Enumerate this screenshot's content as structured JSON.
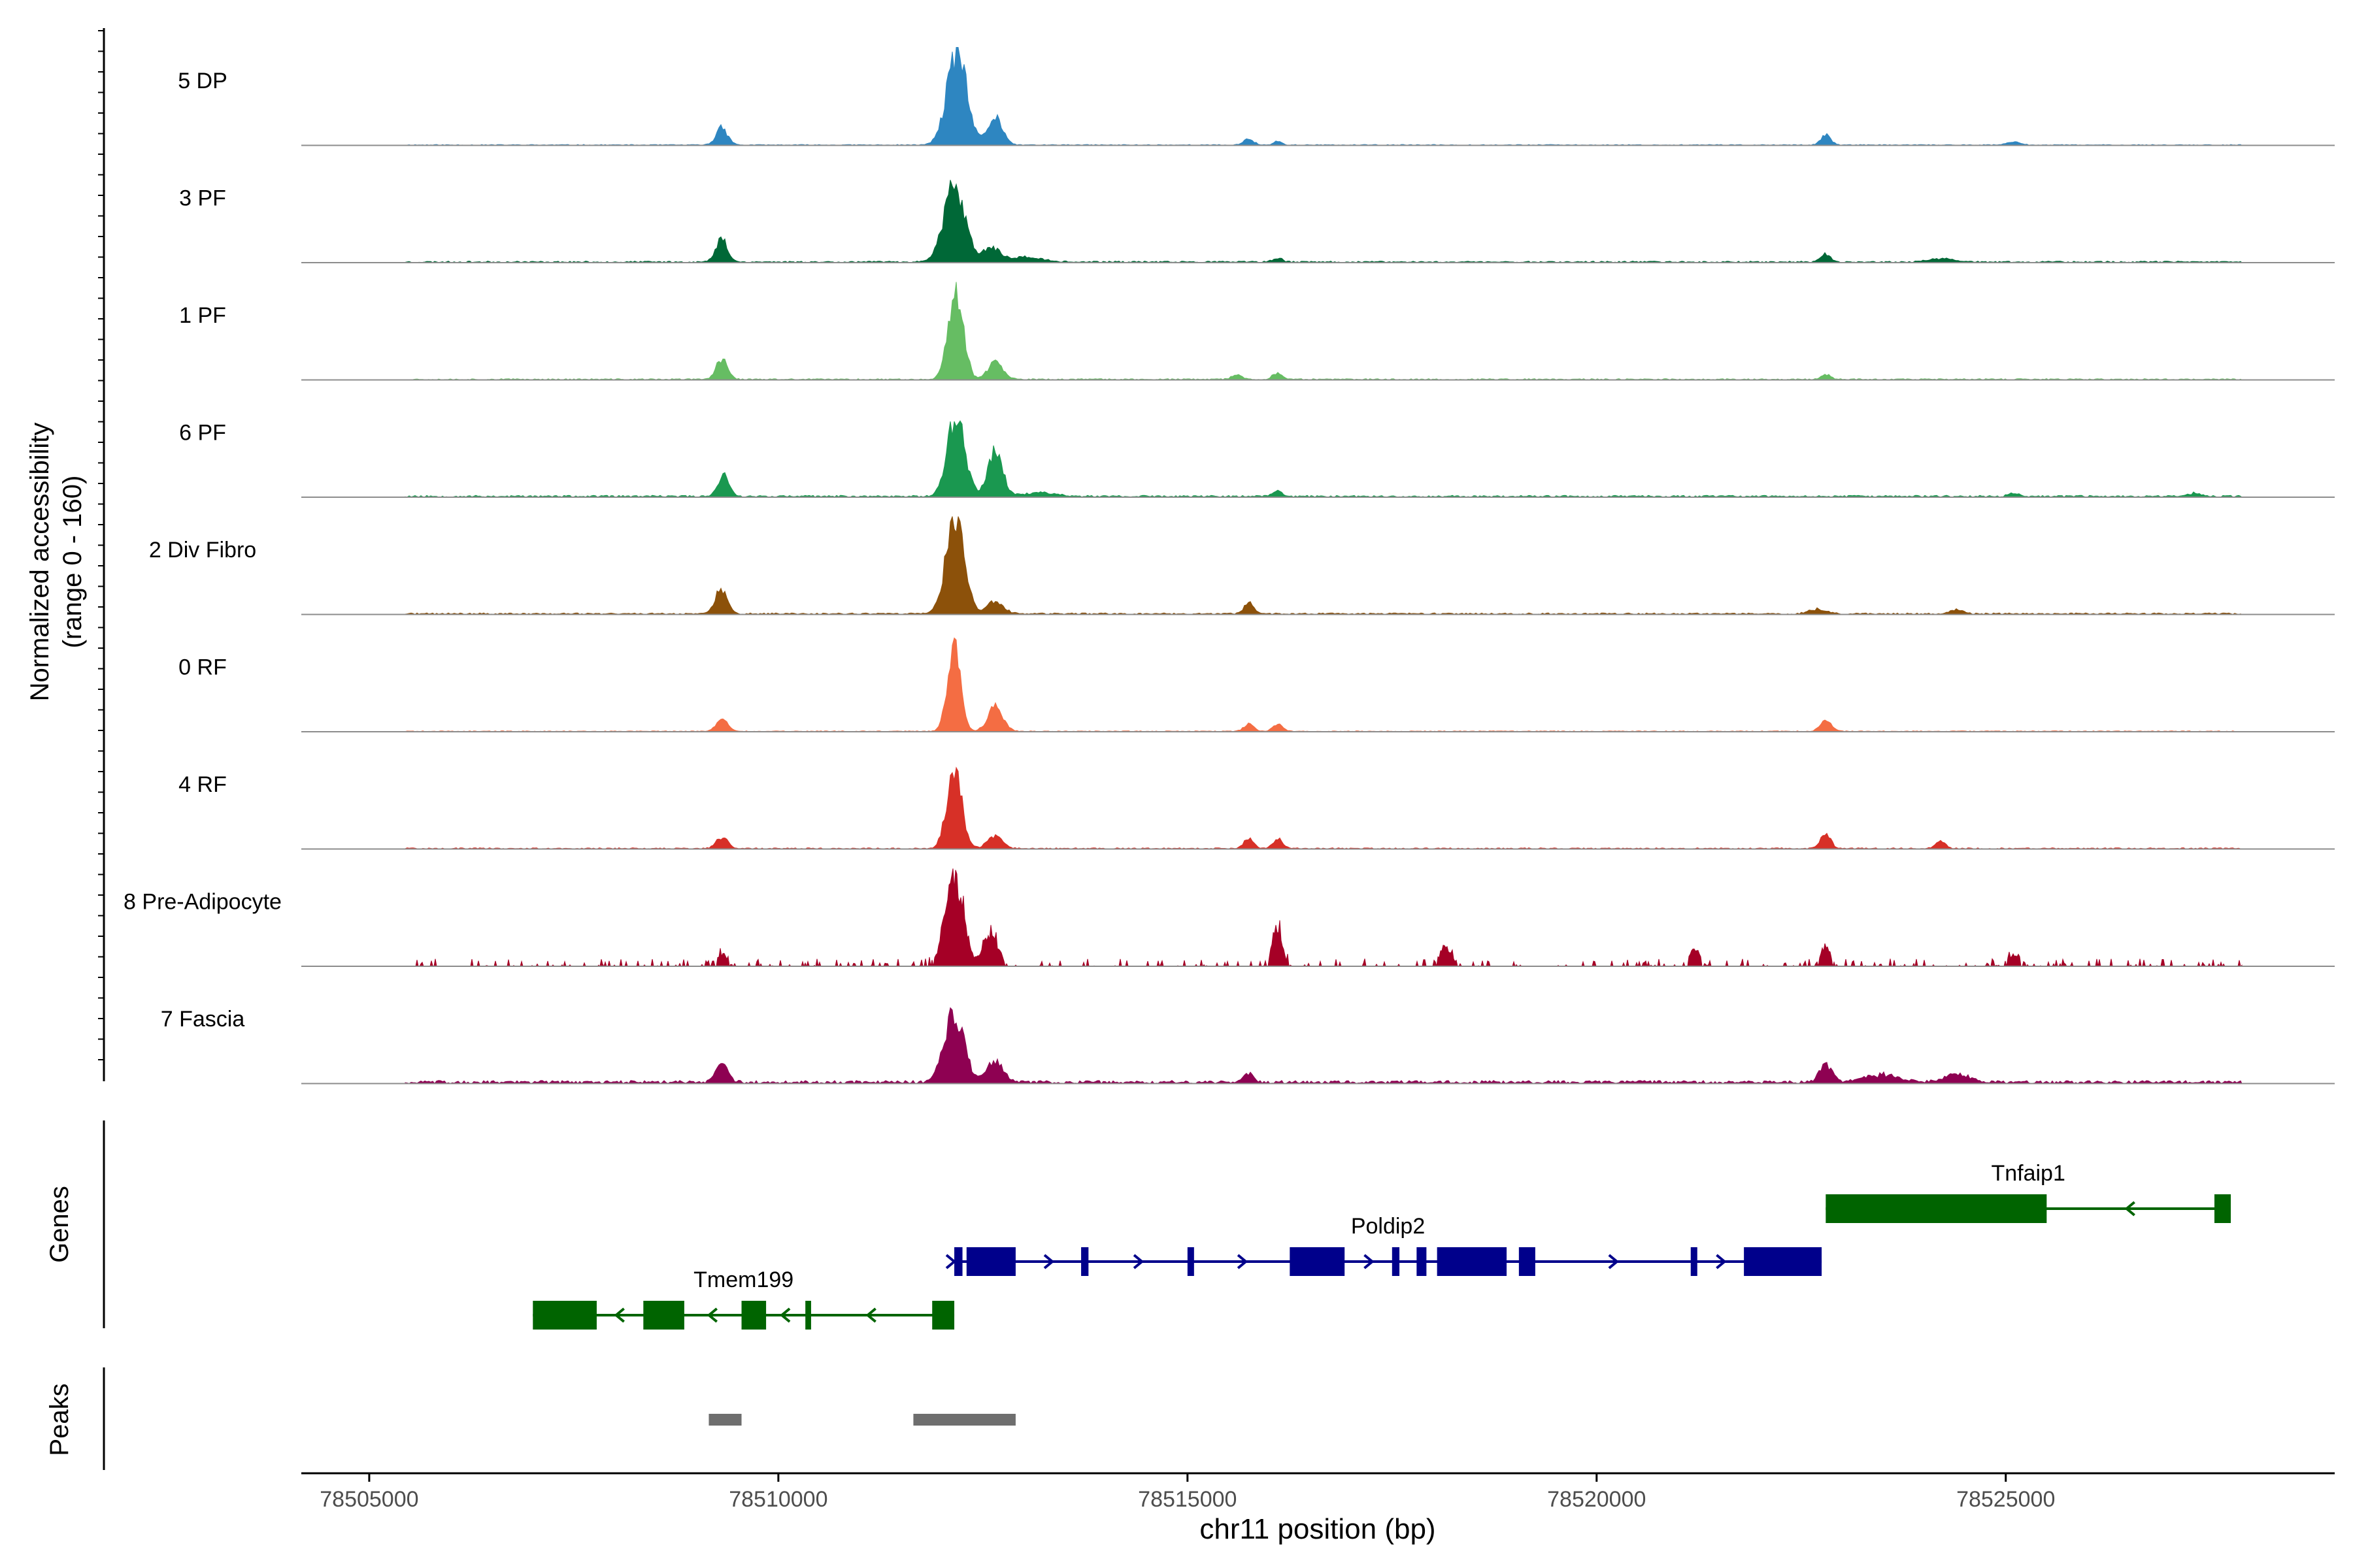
{
  "chart_data": {
    "type": "area",
    "subtype": "genome-coverage-track",
    "region": {
      "chromosome": "chr11",
      "start": 78504170,
      "end": 78529020
    },
    "coverage": {
      "ylabel_line1": "Normalized accessibility",
      "ylabel_line2": "(range 0 - 160)",
      "ylim": [
        0,
        160
      ],
      "tracks": [
        {
          "name": "5 DP",
          "color": "#2e86c1",
          "peaks": [
            [
              78509310,
              28,
              70
            ],
            [
              78512180,
              150,
              120
            ],
            [
              78512650,
              45,
              90
            ],
            [
              78515750,
              10,
              60
            ],
            [
              78516100,
              6,
              50
            ],
            [
              78522800,
              16,
              60
            ],
            [
              78525100,
              5,
              80
            ]
          ],
          "noise": 1.5,
          "seed": 11
        },
        {
          "name": "3 PF",
          "color": "#006837",
          "peaks": [
            [
              78509310,
              38,
              70
            ],
            [
              78512150,
              120,
              130
            ],
            [
              78512600,
              22,
              100
            ],
            [
              78513000,
              8,
              200
            ],
            [
              78516100,
              6,
              60
            ],
            [
              78522800,
              12,
              60
            ],
            [
              78524200,
              5,
              150
            ]
          ],
          "noise": 2.5,
          "seed": 23
        },
        {
          "name": "1 PF",
          "color": "#66bd63",
          "peaks": [
            [
              78509310,
              32,
              70
            ],
            [
              78512170,
              150,
              90
            ],
            [
              78512650,
              28,
              90
            ],
            [
              78515600,
              8,
              60
            ],
            [
              78516100,
              10,
              60
            ],
            [
              78522800,
              8,
              60
            ]
          ],
          "noise": 2,
          "seed": 37
        },
        {
          "name": "6 PF",
          "color": "#1a9850",
          "peaks": [
            [
              78509330,
              35,
              70
            ],
            [
              78512170,
              125,
              110
            ],
            [
              78512650,
              75,
              90
            ],
            [
              78513200,
              6,
              200
            ],
            [
              78516100,
              8,
              60
            ],
            [
              78525100,
              6,
              60
            ],
            [
              78527300,
              5,
              80
            ]
          ],
          "noise": 3,
          "seed": 53
        },
        {
          "name": "2 Div Fibro",
          "color": "#8c510a",
          "peaks": [
            [
              78509300,
              42,
              70
            ],
            [
              78512160,
              165,
              110
            ],
            [
              78512650,
              20,
              100
            ],
            [
              78515750,
              18,
              60
            ],
            [
              78522700,
              8,
              100
            ],
            [
              78524400,
              6,
              80
            ]
          ],
          "noise": 2.5,
          "seed": 71
        },
        {
          "name": "0 RF",
          "color": "#f46d43",
          "peaks": [
            [
              78509310,
              20,
              70
            ],
            [
              78512150,
              140,
              80
            ],
            [
              78512650,
              40,
              90
            ],
            [
              78515750,
              12,
              60
            ],
            [
              78516100,
              12,
              60
            ],
            [
              78522800,
              18,
              70
            ]
          ],
          "noise": 1.5,
          "seed": 89
        },
        {
          "name": "4 RF",
          "color": "#d73027",
          "peaks": [
            [
              78509310,
              18,
              70
            ],
            [
              78512150,
              130,
              90
            ],
            [
              78512650,
              20,
              90
            ],
            [
              78515750,
              16,
              60
            ],
            [
              78516100,
              16,
              60
            ],
            [
              78522800,
              25,
              60
            ],
            [
              78524200,
              12,
              60
            ]
          ],
          "noise": 2,
          "seed": 101
        },
        {
          "name": "8 Pre-Adipocyte",
          "color": "#a50026",
          "peaks": [
            [
              78509310,
              20,
              60
            ],
            [
              78512150,
              150,
              110
            ],
            [
              78512600,
              50,
              90
            ],
            [
              78516100,
              60,
              60
            ],
            [
              78518150,
              30,
              70
            ],
            [
              78521200,
              28,
              60
            ],
            [
              78522800,
              32,
              60
            ],
            [
              78525100,
              20,
              80
            ]
          ],
          "noise": 8,
          "seed": 131,
          "sparse": true
        },
        {
          "name": "7 Fascia",
          "color": "#8e0152",
          "peaks": [
            [
              78509310,
              30,
              70
            ],
            [
              78512150,
              110,
              120
            ],
            [
              78512650,
              35,
              100
            ],
            [
              78515750,
              15,
              60
            ],
            [
              78522800,
              28,
              80
            ],
            [
              78523500,
              12,
              200
            ],
            [
              78524400,
              14,
              150
            ]
          ],
          "noise": 5,
          "seed": 151
        }
      ]
    },
    "genes": {
      "label": "Genes",
      "items": [
        {
          "name": "Tmem199",
          "strand": "-",
          "color": "#006400",
          "start": 78507000,
          "end": 78512150,
          "exons": [
            [
              78507000,
              78507780
            ],
            [
              78508350,
              78508850
            ],
            [
              78509550,
              78509850
            ],
            [
              78510330,
              78510400
            ],
            [
              78511880,
              78512150
            ]
          ]
        },
        {
          "name": "Poldip2",
          "strand": "+",
          "color": "#00008b",
          "start": 78512150,
          "end": 78522750,
          "exons": [
            [
              78512150,
              78512250
            ],
            [
              78512300,
              78512900
            ],
            [
              78513700,
              78513790
            ],
            [
              78515000,
              78515080
            ],
            [
              78516250,
              78516920
            ],
            [
              78517500,
              78517590
            ],
            [
              78517800,
              78517920
            ],
            [
              78518050,
              78518900
            ],
            [
              78519050,
              78519250
            ],
            [
              78521150,
              78521230
            ],
            [
              78521800,
              78522750
            ]
          ]
        },
        {
          "name": "Tnfaip1",
          "strand": "-",
          "color": "#006400",
          "start": 78522800,
          "end": 78527750,
          "exons": [
            [
              78522800,
              78525500
            ],
            [
              78527550,
              78527750
            ]
          ]
        }
      ]
    },
    "peaks_track": {
      "label": "Peaks",
      "color": "#6e6e6e",
      "regions": [
        [
          78509150,
          78509550
        ],
        [
          78511650,
          78512900
        ]
      ]
    },
    "x_axis": {
      "xlabel": "chr11 position (bp)",
      "ticks": [
        78505000,
        78510000,
        78515000,
        78520000,
        78525000
      ],
      "tick_labels": [
        "78505000",
        "78510000",
        "78515000",
        "78520000",
        "78525000"
      ]
    }
  }
}
